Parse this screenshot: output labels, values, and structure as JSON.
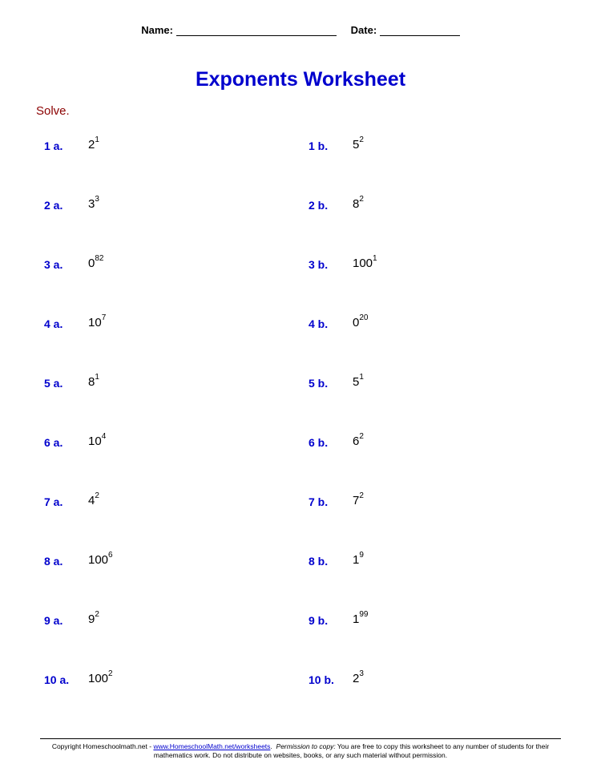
{
  "header": {
    "name_label": "Name:",
    "date_label": "Date:"
  },
  "title": "Exponents Worksheet",
  "instruction": "Solve.",
  "accent_color": "#0000cd",
  "instruction_color": "#8b0000",
  "text_color": "#000000",
  "background_color": "#ffffff",
  "title_fontsize": 25,
  "label_fontsize": 14,
  "expr_fontsize": 15,
  "exponent_fontsize": 10,
  "problems": [
    {
      "a": {
        "label": "1 a.",
        "base": "2",
        "exp": "1"
      },
      "b": {
        "label": "1 b.",
        "base": "5",
        "exp": "2"
      }
    },
    {
      "a": {
        "label": "2 a.",
        "base": "3",
        "exp": "3"
      },
      "b": {
        "label": "2 b.",
        "base": "8",
        "exp": "2"
      }
    },
    {
      "a": {
        "label": "3 a.",
        "base": "0",
        "exp": "82"
      },
      "b": {
        "label": "3 b.",
        "base": "100",
        "exp": "1"
      }
    },
    {
      "a": {
        "label": "4 a.",
        "base": "10",
        "exp": "7"
      },
      "b": {
        "label": "4 b.",
        "base": "0",
        "exp": "20"
      }
    },
    {
      "a": {
        "label": "5 a.",
        "base": "8",
        "exp": "1"
      },
      "b": {
        "label": "5 b.",
        "base": "5",
        "exp": "1"
      }
    },
    {
      "a": {
        "label": "6 a.",
        "base": "10",
        "exp": "4"
      },
      "b": {
        "label": "6 b.",
        "base": "6",
        "exp": "2"
      }
    },
    {
      "a": {
        "label": "7 a.",
        "base": "4",
        "exp": "2"
      },
      "b": {
        "label": "7 b.",
        "base": "7",
        "exp": "2"
      }
    },
    {
      "a": {
        "label": "8 a.",
        "base": "100",
        "exp": "6"
      },
      "b": {
        "label": "8 b.",
        "base": "1",
        "exp": "9"
      }
    },
    {
      "a": {
        "label": "9 a.",
        "base": "9",
        "exp": "2"
      },
      "b": {
        "label": "9 b.",
        "base": "1",
        "exp": "99"
      }
    },
    {
      "a": {
        "label": "10 a.",
        "base": "100",
        "exp": "2"
      },
      "b": {
        "label": "10 b.",
        "base": "2",
        "exp": "3"
      }
    }
  ],
  "footer": {
    "prefix": "Copyright Homeschoolmath.net - ",
    "link_text": "www.HomeschoolMath.net/worksheets",
    "mid": ". ",
    "perm_label": "Permission to copy:",
    "perm_text": " You are free to copy this worksheet to any number of students for their mathematics work. Do not distribute on websites, books, or any such material without permission."
  }
}
